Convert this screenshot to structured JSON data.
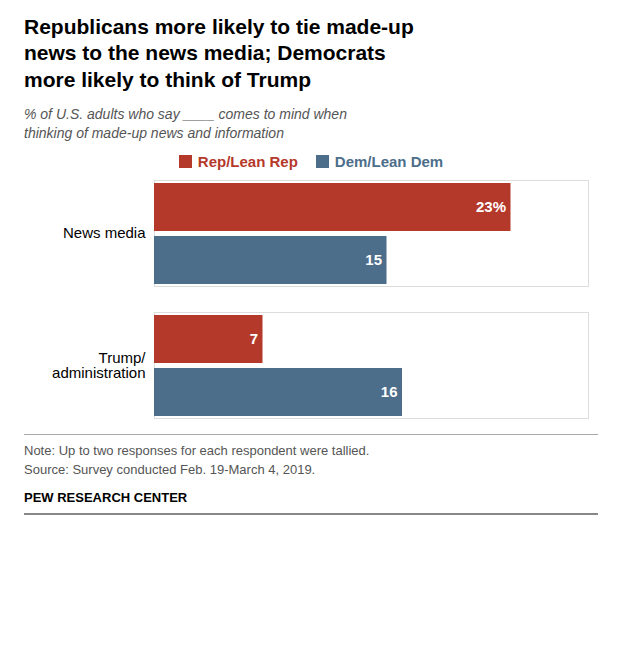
{
  "chart_data": {
    "type": "bar",
    "orientation": "horizontal",
    "title": "Republicans more likely to tie made-up\nnews to the news media; Democrats\nmore likely to think of Trump",
    "subtitle": "% of U.S. adults who say ____ comes to mind when\nthinking of made-up news and information",
    "categories": [
      "News media",
      "Trump/\nadministration"
    ],
    "series": [
      {
        "name": "Rep/Lean Rep",
        "color": "#b5392b",
        "values": [
          23,
          7
        ],
        "value_labels": [
          "23%",
          "7"
        ]
      },
      {
        "name": "Dem/Lean Dem",
        "color": "#4d6e8a",
        "values": [
          15,
          16
        ],
        "value_labels": [
          "15",
          "16"
        ]
      }
    ],
    "xlim": [
      0,
      28
    ],
    "data_labels": true,
    "tick_labels": "y",
    "grid": false,
    "legend": "top",
    "notes": [
      "Note: Up to two responses for each respondent were tallied.",
      "Source: Survey conducted Feb. 19-March 4, 2019."
    ],
    "source": "PEW RESEARCH CENTER"
  }
}
